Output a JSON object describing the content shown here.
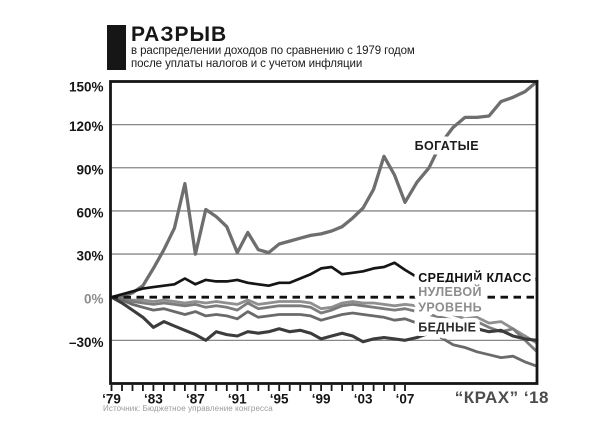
{
  "header": {
    "title": "РАЗРЫВ",
    "subtitle_line1": "в распределении доходов по сравнению с 1979 годом",
    "subtitle_line2": "после уплаты налогов и с учетом инфляции"
  },
  "footer": {
    "source": "Источник: Бюджетное управление конгресса"
  },
  "colors": {
    "ink": "#161616",
    "muted_label": "#8d8d8d",
    "crash_label": "#4d4d4d",
    "grid": "#878787",
    "source_text": "#9a9a9a",
    "background": "#ffffff"
  },
  "chart_data": {
    "type": "line",
    "title": "РАЗРЫВ в распределении доходов по сравнению с 1979 годом",
    "xlabel": "",
    "ylabel": "",
    "grid": "horizontal",
    "legend_position": "inline-annotations",
    "ylim": [
      -60,
      150
    ],
    "yticks": [
      {
        "value": 150,
        "label": "150%"
      },
      {
        "value": 120,
        "label": "120%"
      },
      {
        "value": 90,
        "label": "90%"
      },
      {
        "value": 60,
        "label": "60%"
      },
      {
        "value": 30,
        "label": "30%"
      },
      {
        "value": 0,
        "label": "0%",
        "muted": true
      },
      {
        "value": -30,
        "label": "–30%"
      }
    ],
    "x_years": [
      1979,
      1980,
      1981,
      1982,
      1983,
      1984,
      1985,
      1986,
      1987,
      1988,
      1989,
      1990,
      1991,
      1992,
      1993,
      1994,
      1995,
      1996,
      1997,
      1998,
      1999,
      2000,
      2001,
      2002,
      2003,
      2004,
      2005,
      2006,
      2007,
      2008,
      2009,
      2010,
      2011,
      2012,
      2013,
      2014,
      2015,
      2016,
      2017,
      2018
    ],
    "x_ticks_start": 1979,
    "x_ticks_end": 2007,
    "x_tick_labels": [
      {
        "year": 1979,
        "label": "‘79"
      },
      {
        "year": 1983,
        "label": "‘83"
      },
      {
        "year": 1987,
        "label": "‘87"
      },
      {
        "year": 1991,
        "label": "‘91"
      },
      {
        "year": 1995,
        "label": "‘95"
      },
      {
        "year": 1999,
        "label": "‘99"
      },
      {
        "year": 2003,
        "label": "‘03"
      },
      {
        "year": 2007,
        "label": "‘07"
      }
    ],
    "crash_label": "“КРАХ” ‘18",
    "zero_line": {
      "value": 0,
      "style": "dashed",
      "color": "#111111"
    },
    "series": [
      {
        "id": "poor-1",
        "label": "БЕДНЫЕ",
        "color": "#8f8f8f",
        "values": [
          0,
          -1,
          -2,
          -2,
          -3,
          -2,
          -3,
          -4,
          -3,
          -4,
          -3,
          -4,
          -5,
          -2,
          -5,
          -4,
          -3,
          -3,
          -3,
          -4,
          -8,
          -7,
          -4,
          -3,
          -4,
          -4,
          -5,
          -6,
          -5,
          -6,
          -8,
          -10,
          -12,
          -15,
          -14,
          -18,
          -17,
          -22,
          -27,
          -32
        ]
      },
      {
        "id": "poor-2",
        "label": "БЕДНЫЕ",
        "color": "#7c7c7c",
        "values": [
          0,
          -1,
          -3,
          -4,
          -5,
          -4,
          -5,
          -6,
          -5,
          -7,
          -6,
          -7,
          -9,
          -4,
          -8,
          -7,
          -6,
          -6,
          -6,
          -7,
          -11,
          -9,
          -6,
          -5,
          -6,
          -7,
          -8,
          -9,
          -8,
          -10,
          -12,
          -14,
          -16,
          -18,
          -17,
          -21,
          -24,
          -22,
          -30,
          -38
        ]
      },
      {
        "id": "poor-3",
        "label": "БЕДНЫЕ",
        "color": "#6a6a6a",
        "values": [
          0,
          -2,
          -5,
          -7,
          -9,
          -8,
          -10,
          -12,
          -10,
          -13,
          -12,
          -13,
          -15,
          -10,
          -14,
          -13,
          -12,
          -12,
          -12,
          -13,
          -16,
          -14,
          -12,
          -11,
          -12,
          -13,
          -14,
          -16,
          -15,
          -18,
          -22,
          -28,
          -33,
          -35,
          -38,
          -40,
          -42,
          -41,
          -45,
          -48
        ]
      },
      {
        "id": "poor-4",
        "label": "БЕДНЫЕ",
        "color": "#3c3c3c",
        "values": [
          0,
          -4,
          -9,
          -14,
          -21,
          -17,
          -20,
          -23,
          -26,
          -30,
          -24,
          -26,
          -27,
          -24,
          -25,
          -24,
          -22,
          -24,
          -23,
          -25,
          -29,
          -27,
          -25,
          -27,
          -31,
          -29,
          -28,
          -29,
          -30,
          -28,
          -25,
          -22,
          -20,
          -20,
          -22,
          -24,
          -23,
          -27,
          -29,
          -30
        ]
      },
      {
        "id": "rich",
        "label": "БОГАТЫЕ",
        "color": "#6e6e6e",
        "values": [
          0,
          1,
          3,
          8,
          20,
          33,
          48,
          79,
          30,
          61,
          56,
          49,
          31,
          45,
          33,
          31,
          37,
          39,
          41,
          43,
          44,
          46,
          49,
          55,
          62,
          75,
          98,
          85,
          66,
          80,
          90,
          107,
          118,
          125,
          125,
          126,
          136,
          139,
          143,
          150
        ]
      },
      {
        "id": "middle-class",
        "label": "СРЕДНИЙ КЛАСС",
        "color": "#151515",
        "values": [
          0,
          2,
          4,
          6,
          7,
          8,
          9,
          13,
          9,
          12,
          11,
          11,
          12,
          10,
          9,
          8,
          10,
          10,
          13,
          16,
          20,
          21,
          16,
          17,
          18,
          20,
          21,
          24,
          19,
          14,
          15,
          15,
          16,
          16,
          15,
          16,
          15,
          16,
          15,
          12
        ]
      }
    ],
    "annotations": [
      {
        "id": "rich",
        "text": "БОГАТЫЕ",
        "year": 2007.8,
        "value": 105,
        "color": "#1b1b1b"
      },
      {
        "id": "middle",
        "text": "СРЕДНИЙ КЛАСС",
        "year": 2008.1,
        "value": 13.5,
        "color": "#111111"
      },
      {
        "id": "zero-1",
        "text": "НУЛЕВОЙ",
        "year": 2008.1,
        "value": 3.6,
        "color": "#8d8d8d"
      },
      {
        "id": "zero-2",
        "text": "УРОВЕНЬ",
        "year": 2008.1,
        "value": -7,
        "color": "#8d8d8d"
      },
      {
        "id": "poor",
        "text": "БЕДНЫЕ",
        "year": 2008.1,
        "value": -21,
        "color": "#2b2b2b"
      }
    ]
  }
}
